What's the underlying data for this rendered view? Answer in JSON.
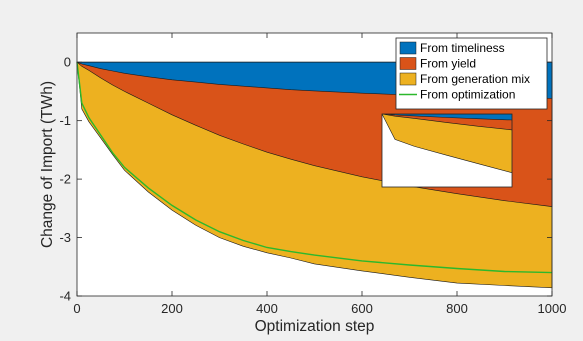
{
  "chart_data": {
    "type": "area",
    "xlabel": "Optimization step",
    "ylabel": "Change of Import (TWh)",
    "xlim": [
      0,
      1000
    ],
    "ylim": [
      -4,
      0.5
    ],
    "xticks": [
      0,
      200,
      400,
      600,
      800,
      1000
    ],
    "yticks": [
      0,
      -1,
      -2,
      -3,
      -4
    ],
    "grid": false,
    "legend_position": "top-right",
    "x": [
      0,
      10,
      25,
      50,
      75,
      100,
      150,
      200,
      250,
      300,
      350,
      400,
      450,
      500,
      600,
      700,
      800,
      900,
      1000
    ],
    "series": [
      {
        "name": "From timeliness",
        "kind": "area",
        "color": "#0072BD",
        "values": [
          0,
          -0.03,
          -0.06,
          -0.11,
          -0.15,
          -0.19,
          -0.25,
          -0.3,
          -0.34,
          -0.38,
          -0.41,
          -0.44,
          -0.47,
          -0.49,
          -0.53,
          -0.56,
          -0.58,
          -0.6,
          -0.62
        ]
      },
      {
        "name": "From yield",
        "kind": "area",
        "color": "#D95319",
        "values": [
          0,
          -0.07,
          -0.14,
          -0.27,
          -0.39,
          -0.5,
          -0.7,
          -0.9,
          -1.08,
          -1.25,
          -1.4,
          -1.54,
          -1.66,
          -1.77,
          -1.96,
          -2.12,
          -2.25,
          -2.37,
          -2.47
        ]
      },
      {
        "name": "From generation mix",
        "kind": "area",
        "color": "#EDB120",
        "values": [
          0,
          -0.8,
          -1.02,
          -1.3,
          -1.58,
          -1.85,
          -2.22,
          -2.53,
          -2.79,
          -3.0,
          -3.15,
          -3.26,
          -3.35,
          -3.45,
          -3.57,
          -3.68,
          -3.78,
          -3.82,
          -3.86
        ]
      },
      {
        "name": "From optimization",
        "kind": "line",
        "color": "#2CB82C",
        "values": [
          0,
          -0.7,
          -0.95,
          -1.25,
          -1.55,
          -1.8,
          -2.15,
          -2.45,
          -2.7,
          -2.9,
          -3.05,
          -3.17,
          -3.24,
          -3.3,
          -3.4,
          -3.47,
          -3.53,
          -3.58,
          -3.6
        ]
      }
    ]
  }
}
